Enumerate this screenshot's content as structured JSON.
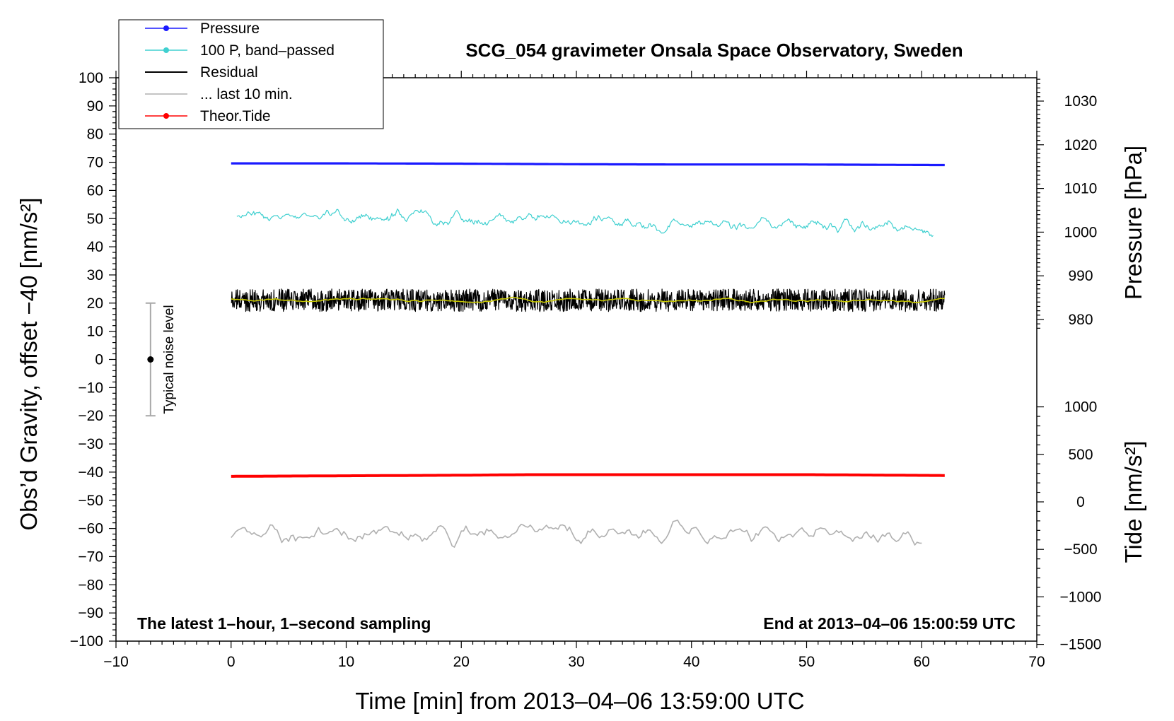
{
  "chart_data": {
    "type": "line",
    "title": "SCG_054 gravimeter Onsala Space Observatory, Sweden",
    "xlabel": "Time [min] from 2013–04–06 13:59:00 UTC",
    "ylabel_left": "Obs’d Gravity, offset −40 [nm/s²]",
    "ylabel_right_pressure": "Pressure [hPa]",
    "ylabel_right_tide": "Tide [nm/s²]",
    "xlim": [
      -10,
      70
    ],
    "ylim": [
      -100,
      100
    ],
    "grid": false,
    "legend_position": "top-left",
    "x_ticks": [
      "−10",
      "0",
      "10",
      "20",
      "30",
      "40",
      "50",
      "60",
      "70"
    ],
    "y_ticks": [
      "100",
      "90",
      "80",
      "70",
      "60",
      "50",
      "40",
      "30",
      "20",
      "10",
      "0",
      "−10",
      "−20",
      "−30",
      "−40",
      "−50",
      "−60",
      "−70",
      "−80",
      "−90",
      "−100"
    ],
    "pressure_axis": {
      "ticks": [
        "1030",
        "1020",
        "1010",
        "1000",
        "990",
        "980"
      ],
      "values": [
        1030,
        1020,
        1010,
        1000,
        990,
        980
      ]
    },
    "tide_axis": {
      "ticks": [
        "1000",
        "500",
        "0",
        "−500",
        "−1000",
        "−1500"
      ],
      "values": [
        1000,
        500,
        0,
        -500,
        -1000,
        -1500
      ]
    },
    "series": [
      {
        "name": "Pressure",
        "color": "#1a1aff",
        "x": [
          0,
          10,
          20,
          30,
          40,
          50,
          62
        ],
        "y": [
          69.6,
          69.6,
          69.5,
          69.3,
          69.2,
          69.2,
          69.0
        ]
      },
      {
        "name": "100 P, band–passed",
        "color": "#40d0d0",
        "x": [
          0.5,
          10,
          20,
          30,
          40,
          50,
          61
        ],
        "y": [
          52,
          51,
          50,
          49,
          48,
          48,
          46
        ],
        "noise": 2.5
      },
      {
        "name": "Residual",
        "color": "#000000",
        "x": [
          0,
          62
        ],
        "y": [
          21,
          21
        ],
        "noise": 4
      },
      {
        "name": "... last 10 min.",
        "color": "#b0b0b0",
        "x": [
          0,
          60
        ],
        "y": [
          -62,
          -62
        ],
        "noise": 3.5
      },
      {
        "name": "Theor.Tide",
        "color": "#ff0000",
        "x": [
          0,
          10,
          20,
          26,
          40,
          50,
          62
        ],
        "y": [
          -41.5,
          -41.3,
          -41.1,
          -40.9,
          -40.9,
          -40.9,
          -41.2
        ]
      },
      {
        "color": "#c8c800",
        "x": [
          0,
          62
        ],
        "y": [
          21,
          21
        ],
        "noise": 0.8
      }
    ],
    "noise_bar": {
      "label": "Typical noise level",
      "x": -7,
      "y": 0,
      "ylow": -20,
      "yhigh": 20
    },
    "annotations": {
      "left": "The latest 1–hour, 1–second sampling",
      "right": "End at 2013–04–06 15:00:59 UTC"
    }
  }
}
